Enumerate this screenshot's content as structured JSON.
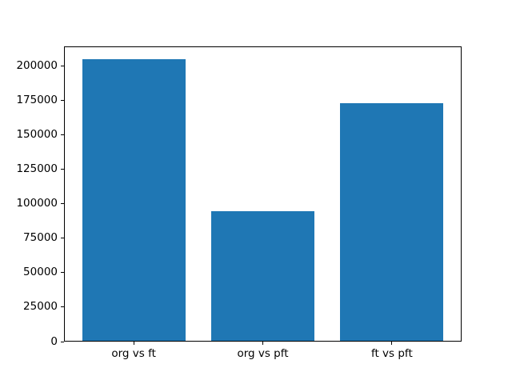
{
  "figure": {
    "background_color": "#ffffff",
    "bar_color": "#1f77b4",
    "spine_color": "#000000",
    "text_color": "#000000"
  },
  "chart_data": {
    "type": "bar",
    "title": "",
    "xlabel": "",
    "ylabel": "",
    "categories": [
      "org vs ft",
      "org vs pft",
      "ft vs pft"
    ],
    "values": [
      205000,
      95000,
      173000
    ],
    "yticks": [
      0,
      25000,
      50000,
      75000,
      100000,
      125000,
      150000,
      175000,
      200000
    ],
    "ylim": [
      0,
      214500
    ],
    "xlim": [
      -0.54,
      2.54
    ],
    "bar_width": 0.8,
    "grid": false,
    "legend": null
  }
}
